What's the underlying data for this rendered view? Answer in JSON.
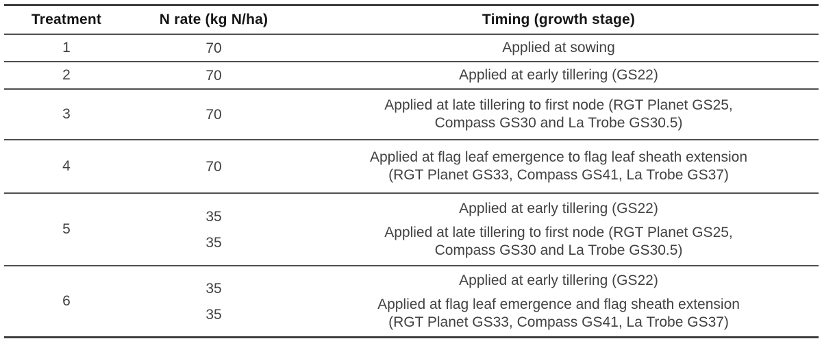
{
  "table": {
    "columns": [
      "Treatment",
      "N rate (kg N/ha)",
      "Timing (growth stage)"
    ],
    "rows": [
      {
        "treatment": "1",
        "n_rates": [
          "70"
        ],
        "timings": [
          {
            "lines": [
              "Applied at sowing"
            ]
          }
        ]
      },
      {
        "treatment": "2",
        "n_rates": [
          "70"
        ],
        "timings": [
          {
            "lines": [
              "Applied at early tillering (GS22)"
            ]
          }
        ]
      },
      {
        "treatment": "3",
        "n_rates": [
          "70"
        ],
        "timings": [
          {
            "lines": [
              "Applied at late tillering to first node (RGT Planet GS25,",
              "Compass GS30 and La Trobe GS30.5)"
            ]
          }
        ]
      },
      {
        "treatment": "4",
        "n_rates": [
          "70"
        ],
        "timings": [
          {
            "lines": [
              "Applied at flag leaf emergence to flag leaf sheath extension",
              "(RGT Planet GS33, Compass GS41, La Trobe GS37)"
            ]
          }
        ]
      },
      {
        "treatment": "5",
        "n_rates": [
          "35",
          "35"
        ],
        "timings": [
          {
            "lines": [
              "Applied at early tillering (GS22)"
            ]
          },
          {
            "lines": [
              "Applied at late tillering to first node (RGT Planet GS25,",
              "Compass GS30 and La Trobe GS30.5)"
            ]
          }
        ]
      },
      {
        "treatment": "6",
        "n_rates": [
          "35",
          "35"
        ],
        "timings": [
          {
            "lines": [
              "Applied at early tillering (GS22)"
            ]
          },
          {
            "lines": [
              "Applied at flag leaf emergence and flag sheath extension",
              "(RGT Planet GS33, Compass GS41, La Trobe GS37)"
            ]
          }
        ]
      }
    ],
    "colors": {
      "rule": "#4f4f4f",
      "outer_rule": "#3d3d3d",
      "header_text": "#151515",
      "body_text": "#414141",
      "background": "#ffffff"
    }
  }
}
